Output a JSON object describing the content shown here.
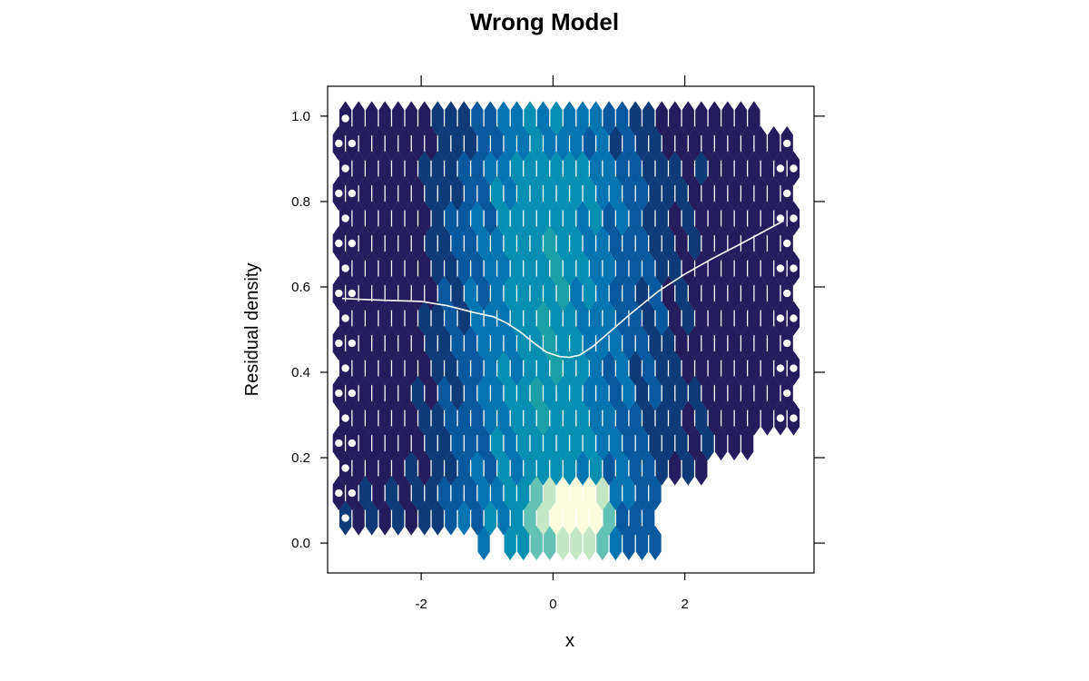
{
  "chart_data": {
    "type": "heatmap",
    "subtype": "hexbin",
    "title": "Wrong Model",
    "xlabel": "x",
    "ylabel": "Residual density",
    "xlim": [
      -3.42,
      3.96
    ],
    "ylim": [
      -0.07,
      1.07
    ],
    "xticks": [
      -2,
      0,
      2
    ],
    "xtick_labels": [
      "-2",
      "0",
      "2"
    ],
    "yticks": [
      0.0,
      0.2,
      0.4,
      0.6,
      0.8,
      1.0
    ],
    "ytick_labels": [
      "0.0",
      "0.2",
      "0.4",
      "0.6",
      "0.8",
      "1.0"
    ],
    "grid": false,
    "legend": false,
    "colors": {
      "background": "#ffffff",
      "frame": "#000000",
      "smooth_line": "#ffffff",
      "palette": [
        "#251c5e",
        "#0e3b78",
        "#08589e",
        "#0574b0",
        "#078fb2",
        "#1a9fa7",
        "#63c2b4",
        "#c4e8c5",
        "#fbfddc"
      ]
    },
    "hexbin": {
      "x_min": -3.25,
      "x_max": 3.7,
      "x_step": 0.2,
      "y_min": 0.0,
      "y_max": 1.0,
      "y_step": 0.0585,
      "count_level_description": "density levels 1 (dark navy) to 9 (pale yellow)",
      "level_profile_x": [
        -3.2,
        -2.6,
        -2.2,
        -1.8,
        -1.5,
        -1.2,
        -0.9,
        -0.5,
        -0.1,
        0.1,
        0.3,
        0.6,
        0.9,
        1.2,
        1.5,
        1.8,
        2.1,
        2.4,
        2.8,
        3.7
      ],
      "level_profile_levels": [
        1,
        1,
        1,
        1.8,
        2.6,
        3.2,
        4.0,
        4.9,
        5.3,
        5.3,
        5.0,
        4.3,
        3.6,
        3.0,
        2.4,
        1.8,
        1.4,
        1,
        1,
        1
      ]
    },
    "series": [
      {
        "type": "smooth_line",
        "x": [
          -3.2,
          -2.8,
          -2.4,
          -2.0,
          -1.6,
          -1.2,
          -0.9,
          -0.7,
          -0.5,
          -0.3,
          -0.1,
          0.1,
          0.25,
          0.4,
          0.6,
          0.9,
          1.2,
          1.6,
          2.0,
          2.4,
          2.8,
          3.2,
          3.5
        ],
        "y": [
          0.573,
          0.57,
          0.568,
          0.566,
          0.556,
          0.54,
          0.53,
          0.515,
          0.495,
          0.47,
          0.447,
          0.437,
          0.435,
          0.44,
          0.46,
          0.5,
          0.54,
          0.59,
          0.63,
          0.665,
          0.697,
          0.73,
          0.755
        ]
      }
    ]
  }
}
